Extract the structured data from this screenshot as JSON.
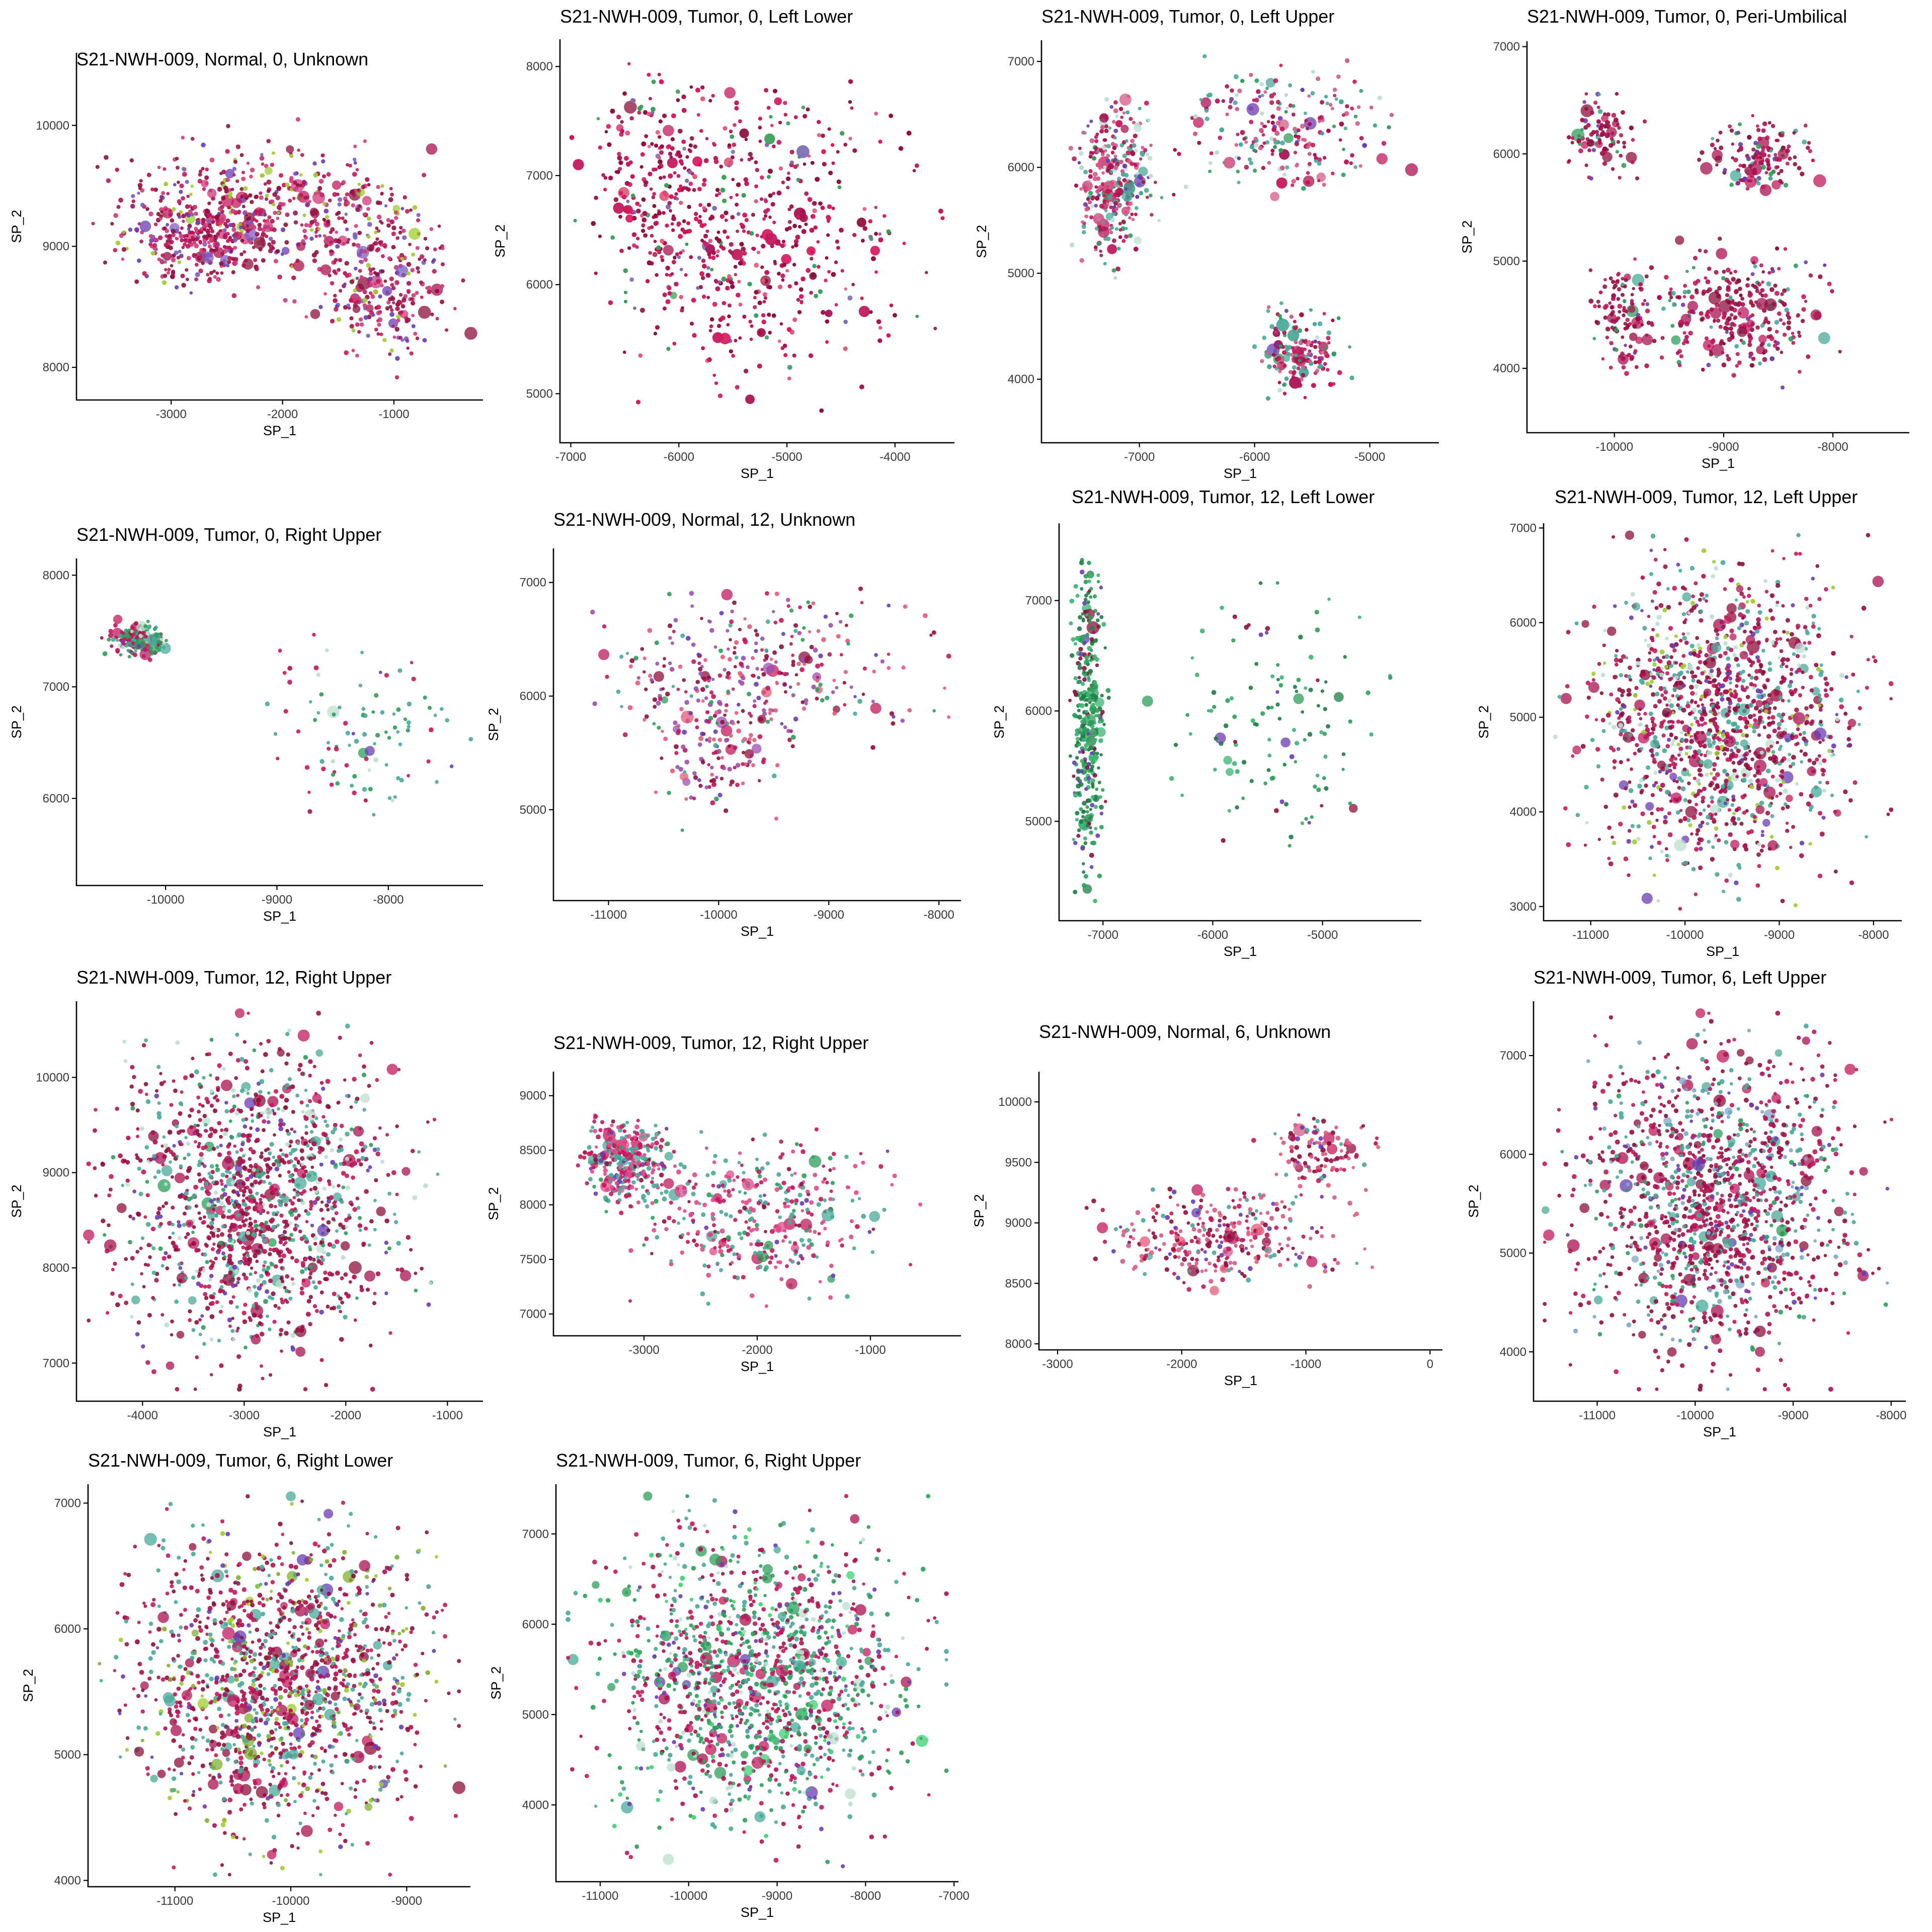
{
  "chart_data": [
    {
      "type": "scatter",
      "title": "S21-NWH-009, Normal, 0, Unknown",
      "xlabel": "SP_1",
      "ylabel": "SP_2",
      "xticks": [
        -3000,
        -2000,
        -1000
      ],
      "yticks": [
        8000,
        9000,
        10000
      ],
      "xlim": [
        -3850,
        -200
      ],
      "ylim": [
        7730,
        10600
      ],
      "palette": [
        "#a8124f",
        "#c2185b",
        "#8e0f3d",
        "#d03a7a"
      ],
      "accent": [
        "#6a3cb4",
        "#7b5cc4",
        "#9ccc2e"
      ],
      "density": 1.0
    },
    {
      "type": "scatter",
      "title": "S21-NWH-009, Tumor, 0, Left Lower",
      "xlabel": "SP_1",
      "ylabel": "SP_2",
      "xticks": [
        -7000,
        -6000,
        -5000,
        -4000
      ],
      "yticks": [
        5000,
        6000,
        7000,
        8000
      ],
      "xlim": [
        -7100,
        -3450
      ],
      "ylim": [
        4550,
        8250
      ],
      "palette": [
        "#c2185b",
        "#a8124f",
        "#d81b60",
        "#8e0f3d"
      ],
      "accent": [
        "#e65a7a",
        "#7e6bb8",
        "#3aa05a"
      ],
      "density": 1.3
    },
    {
      "type": "scatter",
      "title": "S21-NWH-009, Tumor, 0, Left Upper",
      "xlabel": "SP_1",
      "ylabel": "SP_2",
      "xticks": [
        -7000,
        -6000,
        -5000
      ],
      "yticks": [
        4000,
        5000,
        6000,
        7000
      ],
      "xlim": [
        -7850,
        -4400
      ],
      "ylim": [
        3400,
        7200
      ],
      "palette": [
        "#c2185b",
        "#d45b8a",
        "#a8124f",
        "#4aa89a"
      ],
      "accent": [
        "#2e9e5a",
        "#6a3cb4",
        "#bcdfcf"
      ],
      "density": 0.8
    },
    {
      "type": "scatter",
      "title": "S21-NWH-009, Tumor, 0, Peri-Umbilical",
      "xlabel": "SP_1",
      "ylabel": "SP_2",
      "xticks": [
        -10000,
        -9000,
        -8000
      ],
      "yticks": [
        4000,
        5000,
        6000,
        7000
      ],
      "xlim": [
        -10800,
        -7300
      ],
      "ylim": [
        3400,
        7050
      ],
      "palette": [
        "#a8124f",
        "#c2185b",
        "#8e0f3d"
      ],
      "accent": [
        "#6a3cb4",
        "#2e9e5a",
        "#4aa89a"
      ],
      "density": 0.9
    },
    {
      "type": "scatter",
      "title": "S21-NWH-009, Tumor, 0, Right Upper",
      "xlabel": "SP_1",
      "ylabel": "SP_2",
      "xticks": [
        -10000,
        -9000,
        -8000
      ],
      "yticks": [
        6000,
        7000,
        8000
      ],
      "xlim": [
        -10800,
        -7150
      ],
      "ylim": [
        5220,
        8150
      ],
      "palette": [
        "#4aa89a",
        "#2e9e5a",
        "#c2185b"
      ],
      "accent": [
        "#6a3cb4",
        "#bcdfcf",
        "#a8124f"
      ],
      "density": 0.25
    },
    {
      "type": "scatter",
      "title": "S21-NWH-009, Normal, 12, Unknown",
      "xlabel": "SP_1",
      "ylabel": "SP_2",
      "xticks": [
        -11000,
        -10000,
        -9000,
        -8000
      ],
      "yticks": [
        5000,
        6000,
        7000
      ],
      "xlim": [
        -11500,
        -7800
      ],
      "ylim": [
        4200,
        7300
      ],
      "palette": [
        "#c2185b",
        "#8e0f3d",
        "#9c4fb0",
        "#e65a7a"
      ],
      "accent": [
        "#6a3cb4",
        "#4aa89a",
        "#2e9e5a"
      ],
      "density": 0.45
    },
    {
      "type": "scatter",
      "title": "S21-NWH-009, Tumor, 12, Left Lower",
      "xlabel": "SP_1",
      "ylabel": "SP_2",
      "xticks": [
        -7000,
        -6000,
        -5000
      ],
      "yticks": [
        5000,
        6000,
        7000
      ],
      "xlim": [
        -7400,
        -4100
      ],
      "ylim": [
        4100,
        7700
      ],
      "palette": [
        "#2e9e5a",
        "#1e7d44",
        "#3cb371"
      ],
      "accent": [
        "#6a3cb4",
        "#8e0f3d"
      ],
      "density": 0.5
    },
    {
      "type": "scatter",
      "title": "S21-NWH-009, Tumor, 12, Left Upper",
      "xlabel": "SP_1",
      "ylabel": "SP_2",
      "xticks": [
        -11000,
        -10000,
        -9000,
        -8000
      ],
      "yticks": [
        3000,
        4000,
        5000,
        6000,
        7000
      ],
      "xlim": [
        -11500,
        -7700
      ],
      "ylim": [
        2850,
        7050
      ],
      "palette": [
        "#a8124f",
        "#c2185b",
        "#4aa89a",
        "#8e0f3d"
      ],
      "accent": [
        "#9ccc2e",
        "#6a3cb4",
        "#bcdfcf"
      ],
      "density": 1.0
    },
    {
      "type": "scatter",
      "title": "S21-NWH-009, Tumor, 12, Right Upper",
      "xlabel": "SP_1",
      "ylabel": "SP_2",
      "xticks": [
        -4000,
        -3000,
        -2000,
        -1000
      ],
      "yticks": [
        7000,
        8000,
        9000,
        10000
      ],
      "xlim": [
        -4650,
        -650
      ],
      "ylim": [
        6600,
        10800
      ],
      "palette": [
        "#a8124f",
        "#c2185b",
        "#8e0f3d",
        "#4aa89a"
      ],
      "accent": [
        "#6a3cb4",
        "#2e9e5a",
        "#bcdfcf"
      ],
      "density": 1.0
    },
    {
      "type": "scatter",
      "title": "S21-NWH-009, Tumor, 12, Right Upper",
      "xlabel": "SP_1",
      "ylabel": "SP_2",
      "xticks": [
        -3000,
        -2000,
        -1000
      ],
      "yticks": [
        7000,
        7500,
        8000,
        8500,
        9000
      ],
      "xlim": [
        -3800,
        -200
      ],
      "ylim": [
        6800,
        9220
      ],
      "palette": [
        "#4aa89a",
        "#e0488a",
        "#c2185b"
      ],
      "accent": [
        "#6a3cb4",
        "#8e0f3d",
        "#2e9e5a"
      ],
      "density": 0.55
    },
    {
      "type": "scatter",
      "title": "S21-NWH-009, Normal, 6, Unknown",
      "xlabel": "SP_1",
      "ylabel": "SP_2",
      "xticks": [
        -3000,
        -2000,
        -1000,
        0
      ],
      "yticks": [
        8000,
        8500,
        9000,
        9500,
        10000
      ],
      "xlim": [
        -3150,
        100
      ],
      "ylim": [
        7950,
        10250
      ],
      "palette": [
        "#c2185b",
        "#e65a7a",
        "#8e0f3d",
        "#d45b8a"
      ],
      "accent": [
        "#6a3cb4",
        "#4aa89a"
      ],
      "density": 0.45
    },
    {
      "type": "scatter",
      "title": "S21-NWH-009, Tumor, 6, Left Upper",
      "xlabel": "SP_1",
      "ylabel": "SP_2",
      "xticks": [
        -11000,
        -10000,
        -9000,
        -8000
      ],
      "yticks": [
        4000,
        5000,
        6000,
        7000
      ],
      "xlim": [
        -11650,
        -7850
      ],
      "ylim": [
        3500,
        7550
      ],
      "palette": [
        "#a8124f",
        "#c2185b",
        "#8e0f3d",
        "#4aa89a"
      ],
      "accent": [
        "#2e9e5a",
        "#6a3cb4",
        "#7fa8c8"
      ],
      "density": 1.0
    },
    {
      "type": "scatter",
      "title": "S21-NWH-009, Tumor, 6, Right Lower",
      "xlabel": "SP_1",
      "ylabel": "SP_2",
      "xticks": [
        -11000,
        -10000,
        -9000
      ],
      "yticks": [
        4000,
        5000,
        6000,
        7000
      ],
      "xlim": [
        -11750,
        -8450
      ],
      "ylim": [
        3950,
        7150
      ],
      "palette": [
        "#a8124f",
        "#c2185b",
        "#8e0f3d",
        "#4aa89a"
      ],
      "accent": [
        "#9ccc2e",
        "#6a3cb4",
        "#7fb030"
      ],
      "density": 1.0
    },
    {
      "type": "scatter",
      "title": "S21-NWH-009, Tumor, 6, Right Upper",
      "xlabel": "SP_1",
      "ylabel": "SP_2",
      "xticks": [
        -11000,
        -10000,
        -9000,
        -8000,
        -7000
      ],
      "yticks": [
        4000,
        5000,
        6000,
        7000
      ],
      "xlim": [
        -11500,
        -6950
      ],
      "ylim": [
        3150,
        7550
      ],
      "palette": [
        "#4aa89a",
        "#a8124f",
        "#c2185b",
        "#2e9e5a"
      ],
      "accent": [
        "#6a3cb4",
        "#bcdfcf",
        "#3cd070"
      ],
      "density": 1.0
    }
  ]
}
